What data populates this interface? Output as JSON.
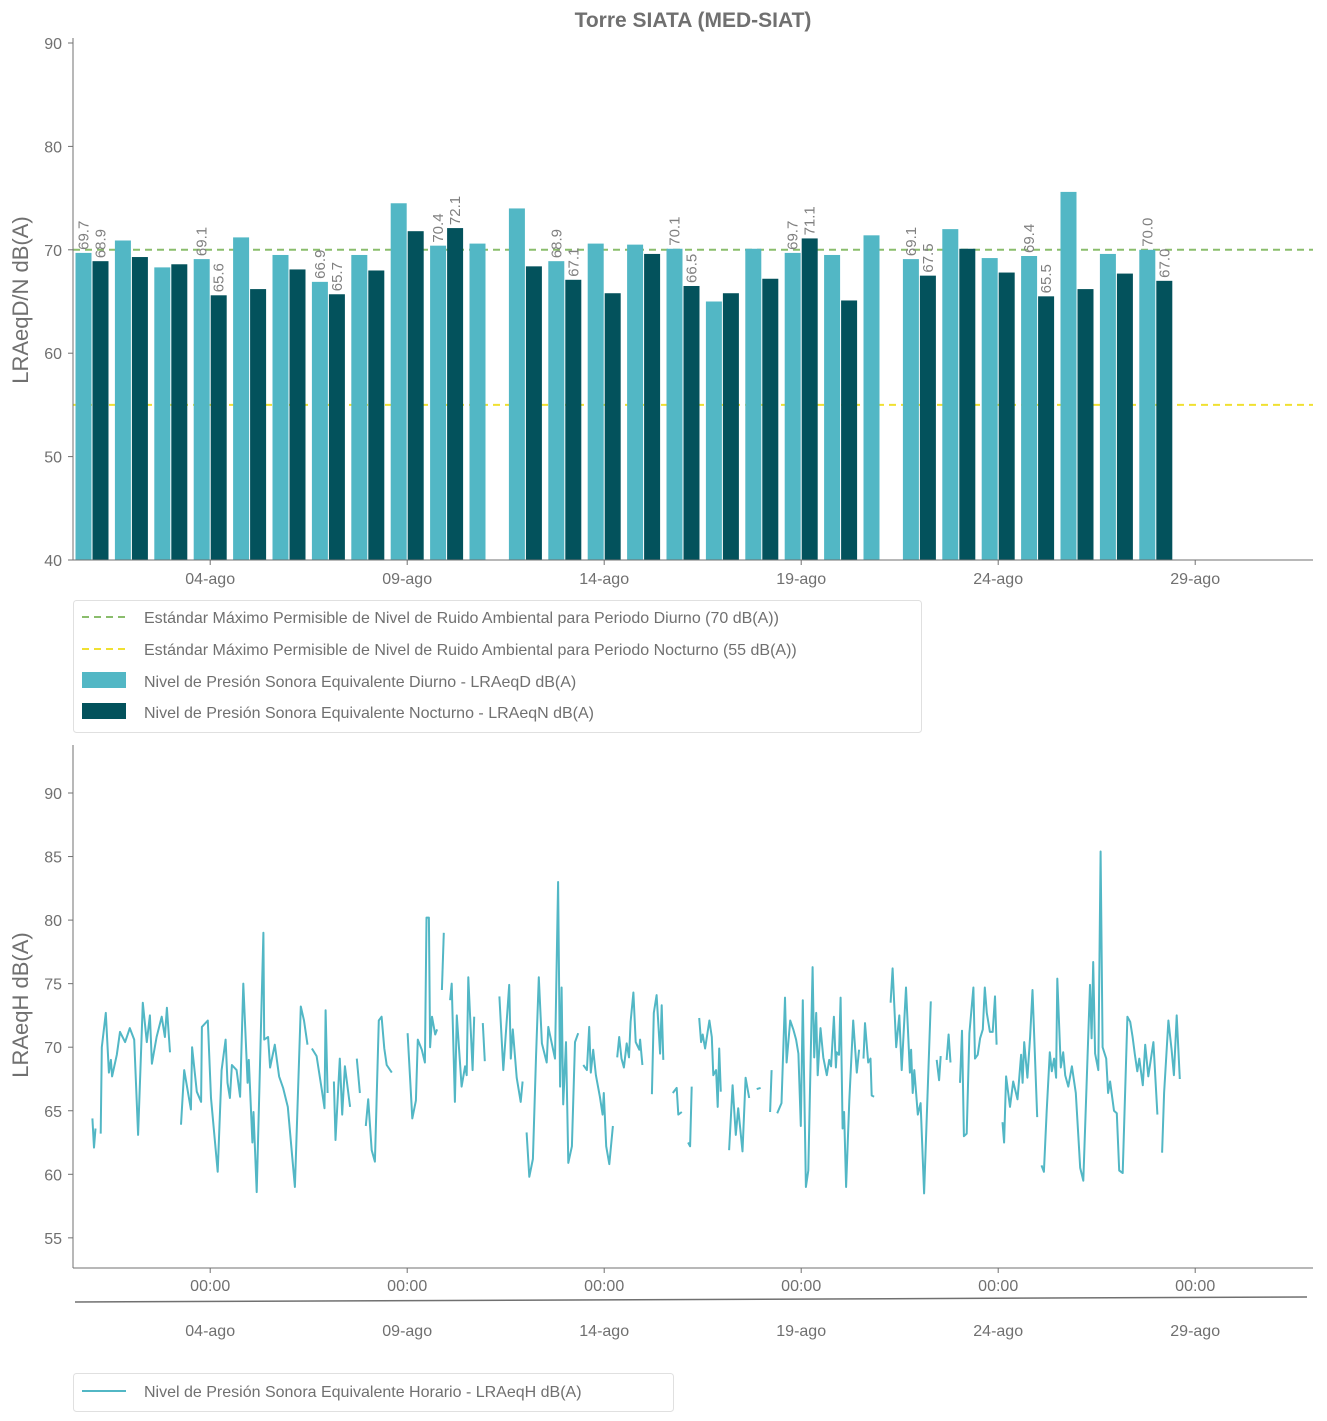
{
  "chart_data": [
    {
      "type": "bar",
      "title": "Torre SIATA (MED-SIAT)",
      "xlabel": "",
      "ylabel": "LRAeqD/N dB(A)",
      "ylim": [
        40,
        90.5
      ],
      "yticks": [
        40,
        50,
        60,
        70,
        80,
        90
      ],
      "xtick_labels": [
        {
          "day": 4,
          "label": "04-ago"
        },
        {
          "day": 9,
          "label": "09-ago"
        },
        {
          "day": 14,
          "label": "14-ago"
        },
        {
          "day": 19,
          "label": "19-ago"
        },
        {
          "day": 24,
          "label": "24-ago"
        },
        {
          "day": 29,
          "label": "29-ago"
        }
      ],
      "days": [
        1,
        2,
        3,
        4,
        5,
        6,
        7,
        8,
        9,
        10,
        11,
        12,
        13,
        14,
        15,
        16,
        17,
        18,
        19,
        20,
        21,
        22,
        23,
        24,
        25,
        26,
        27,
        28
      ],
      "series": [
        {
          "name": "Nivel de Presión Sonora Equivalente Diurno - LRAeqD dB(A)",
          "color": "#52b7c5",
          "values": [
            69.7,
            70.9,
            68.3,
            69.1,
            71.2,
            69.5,
            66.9,
            69.5,
            74.5,
            70.4,
            70.6,
            74.0,
            68.9,
            70.6,
            70.5,
            70.1,
            65.0,
            70.1,
            69.7,
            69.5,
            71.4,
            69.1,
            72.0,
            69.2,
            69.4,
            75.6,
            69.6,
            70.0
          ]
        },
        {
          "name": "Nivel de Presión Sonora Equivalente Nocturno - LRAeqN dB(A)",
          "color": "#03525c",
          "values": [
            68.9,
            69.3,
            68.6,
            65.6,
            66.2,
            68.1,
            65.7,
            68.0,
            71.8,
            72.1,
            null,
            68.4,
            67.1,
            65.8,
            69.6,
            66.5,
            65.8,
            67.2,
            71.1,
            65.1,
            null,
            67.5,
            70.1,
            67.8,
            65.5,
            66.2,
            67.7,
            67.0
          ]
        }
      ],
      "labeled_days": [
        1,
        4,
        7,
        10,
        13,
        16,
        19,
        22,
        25,
        28
      ],
      "reference_lines": [
        {
          "name": "Estándar Máximo Permisible de Nivel de Ruido Ambiental para Periodo Diurno (70 dB(A))",
          "value": 70,
          "color": "#8abd6c",
          "style": "dashed"
        },
        {
          "name": "Estándar Máximo Permisible de Nivel de Ruido Ambiental para Periodo Nocturno (55 dB(A))",
          "value": 55,
          "color": "#f0e032",
          "style": "dashed"
        }
      ],
      "legend_position": "below"
    },
    {
      "type": "line",
      "title": "",
      "xlabel": "",
      "ylabel": "LRAeqH dB(A)",
      "ylim": [
        52.6,
        93.8
      ],
      "yticks": [
        55,
        60,
        65,
        70,
        75,
        80,
        85,
        90
      ],
      "x_units": "days since 01-ago 00:00",
      "xtick_labels": [
        {
          "day": 3,
          "time": "00:00",
          "date": "04-ago"
        },
        {
          "day": 8,
          "time": "00:00",
          "date": "09-ago"
        },
        {
          "day": 13,
          "time": "00:00",
          "date": "14-ago"
        },
        {
          "day": 18,
          "time": "00:00",
          "date": "19-ago"
        },
        {
          "day": 23,
          "time": "00:00",
          "date": "24-ago"
        },
        {
          "day": 28,
          "time": "00:00",
          "date": "29-ago"
        }
      ],
      "series": [
        {
          "name": "Nivel de Presión Sonora Equivalente Horario - LRAeqH dB(A)",
          "color": "#52b7c5",
          "x": [
            0.01,
            0.05,
            0.09,
            null,
            0.22,
            0.25,
            0.35,
            0.43,
            0.48,
            0.51,
            0.63,
            0.71,
            0.84,
            0.96,
            1.07,
            1.17,
            1.29,
            1.39,
            1.47,
            1.52,
            1.64,
            1.77,
            1.85,
            1.9,
            1.98,
            null,
            2.26,
            2.34,
            2.51,
            2.54,
            2.66,
            2.77,
            2.79,
            2.94,
            3.02,
            3.19,
            3.29,
            3.39,
            3.44,
            3.5,
            3.55,
            3.67,
            3.76,
            3.84,
            3.95,
            3.98,
            4.07,
            4.1,
            4.18,
            4.26,
            4.35,
            4.37,
            4.47,
            4.52,
            4.64,
            4.75,
            4.85,
            4.97,
            5.15,
            5.3,
            5.38,
            5.47,
            null,
            5.58,
            5.7,
            5.83,
            5.9,
            5.93,
            5.98,
            null,
            6.14,
            6.18,
            6.29,
            6.35,
            6.42,
            6.55,
            null,
            6.72,
            6.8,
            null,
            6.95,
            7.01,
            7.1,
            7.18,
            7.28,
            7.35,
            7.42,
            7.48,
            7.61,
            null,
            8.01,
            8.13,
            8.22,
            8.27,
            8.37,
            8.45,
            8.49,
            8.55,
            8.58,
            8.63,
            8.71,
            8.76,
            null,
            8.88,
            8.93,
            null,
            9.09,
            9.13,
            9.21,
            9.26,
            9.38,
            9.47,
            9.51,
            9.55,
            9.66,
            9.7,
            null,
            9.92,
            9.97,
            null,
            10.34,
            10.44,
            10.59,
            10.63,
            10.68,
            10.78,
            10.88,
            10.93,
            null,
            11.03,
            11.1,
            11.19,
            11.27,
            11.34,
            11.42,
            11.54,
            11.58,
            11.75,
            11.83,
            11.88,
            11.92,
            11.96,
            12.03,
            12.09,
            12.18,
            12.26,
            12.34,
            null,
            12.47,
            12.56,
            12.62,
            12.66,
            12.72,
            12.79,
            12.89,
            12.96,
            12.99,
            13.05,
            13.13,
            13.22,
            null,
            13.33,
            13.38,
            13.44,
            13.5,
            13.57,
            13.63,
            13.67,
            13.74,
            13.8,
            13.89,
            13.91,
            13.97,
            null,
            14.21,
            14.26,
            14.33,
            14.42,
            14.46,
            14.5,
            null,
            14.74,
            14.84,
            14.88,
            14.97,
            null,
            15.13,
            15.18,
            15.22,
            null,
            15.41,
            15.46,
            15.5,
            15.56,
            15.67,
            15.73,
            15.77,
            15.84,
            15.88,
            15.92,
            15.96,
            null,
            16.17,
            16.26,
            16.34,
            16.4,
            16.51,
            16.59,
            16.68,
            null,
            16.87,
            16.97,
            null,
            17.21,
            17.25,
            null,
            17.39,
            17.5,
            17.59,
            17.63,
            17.72,
            17.8,
            17.87,
            17.93,
            17.99,
            18.04,
            18.12,
            18.18,
            18.29,
            18.33,
            18.38,
            18.42,
            18.49,
            18.56,
            18.65,
            18.71,
            18.76,
            18.83,
            18.88,
            18.9,
            18.96,
            19.0,
            19.05,
            19.09,
            19.14,
            19.22,
            19.32,
            19.41,
            19.47,
            null,
            19.58,
            19.62,
            19.7,
            19.76,
            19.79,
            19.85,
            null,
            20.27,
            20.32,
            20.41,
            20.49,
            20.55,
            20.66,
            20.76,
            20.79,
            20.83,
            20.87,
            20.96,
            21.03,
            21.12,
            21.29,
            null,
            21.44,
            21.5,
            21.54,
            null,
            21.69,
            21.74,
            21.79,
            null,
            22.03,
            22.08,
            22.13,
            22.2,
            22.27,
            22.37,
            22.41,
            22.48,
            22.54,
            22.61,
            22.66,
            22.71,
            22.79,
            22.86,
            22.92,
            22.96,
            null,
            23.11,
            23.15,
            23.2,
            23.3,
            23.38,
            23.49,
            23.58,
            23.62,
            23.66,
            23.74,
            23.81,
            23.87,
            23.99,
            null,
            24.1,
            24.16,
            24.23,
            24.31,
            24.36,
            24.42,
            24.47,
            24.5,
            24.59,
            24.65,
            24.7,
            24.78,
            24.87,
            24.97,
            25.08,
            25.16,
            25.33,
            25.37,
            25.41,
            25.46,
            25.54,
            25.6,
            25.65,
            25.74,
            25.79,
            25.84,
            25.94,
            26.01,
            26.07,
            26.16,
            26.28,
            26.35,
            26.41,
            26.47,
            26.53,
            26.58,
            26.67,
            26.73,
            26.81,
            26.94,
            27.04,
            null,
            27.16,
            27.21,
            27.32,
            27.4,
            27.46,
            27.53,
            27.61
          ],
          "y": [
            64.4,
            62.1,
            63.6,
            null,
            63.2,
            70.0,
            72.7,
            68.0,
            69.0,
            67.7,
            69.4,
            71.2,
            70.4,
            71.5,
            70.6,
            63.1,
            73.5,
            70.4,
            72.5,
            68.7,
            70.8,
            72.4,
            70.8,
            73.1,
            69.6,
            null,
            63.9,
            68.2,
            65.1,
            70.0,
            66.5,
            65.7,
            71.6,
            72.1,
            66.0,
            60.2,
            68.2,
            70.6,
            67.2,
            66.0,
            68.6,
            68.2,
            66.1,
            75.0,
            67.2,
            69.0,
            62.5,
            64.9,
            58.6,
            68.0,
            79.0,
            70.6,
            70.8,
            68.4,
            70.2,
            67.7,
            66.8,
            65.3,
            59.0,
            73.2,
            72.1,
            70.2,
            null,
            69.9,
            69.3,
            66.7,
            65.2,
            72.9,
            66.4,
            null,
            67.3,
            62.7,
            69.1,
            64.7,
            68.5,
            65.3,
            null,
            69.1,
            66.4,
            null,
            63.8,
            65.9,
            61.9,
            61.0,
            72.1,
            72.4,
            69.9,
            68.6,
            68.0,
            null,
            71.1,
            64.4,
            65.8,
            70.6,
            69.8,
            68.8,
            80.2,
            80.2,
            70.0,
            72.4,
            71.0,
            71.4,
            null,
            74.5,
            79.0,
            null,
            73.7,
            75.0,
            65.7,
            72.5,
            66.9,
            68.5,
            67.8,
            75.5,
            68.2,
            72.4,
            null,
            71.9,
            68.9,
            null,
            74.0,
            68.2,
            74.9,
            69.1,
            71.4,
            67.6,
            65.7,
            67.3,
            null,
            63.3,
            59.8,
            61.2,
            69.2,
            75.5,
            70.3,
            68.8,
            71.6,
            69.1,
            83.0,
            66.9,
            74.7,
            65.5,
            70.4,
            60.9,
            62.2,
            70.4,
            71.1,
            null,
            68.6,
            68.2,
            71.6,
            68.0,
            69.8,
            67.8,
            66.1,
            64.7,
            66.4,
            62.2,
            60.8,
            63.8,
            null,
            69.2,
            70.8,
            69.1,
            68.4,
            70.3,
            69.2,
            72.0,
            74.3,
            70.4,
            69.8,
            70.6,
            68.6,
            null,
            66.3,
            72.7,
            74.1,
            69.5,
            73.3,
            69.0,
            null,
            66.4,
            66.8,
            64.7,
            64.9,
            null,
            62.5,
            62.2,
            66.9,
            null,
            72.3,
            70.4,
            71.0,
            69.9,
            72.1,
            70.8,
            67.8,
            68.2,
            65.3,
            69.9,
            66.5,
            null,
            61.9,
            67.0,
            63.1,
            65.2,
            61.8,
            67.6,
            66.0,
            null,
            66.7,
            66.8,
            null,
            64.9,
            68.2,
            null,
            64.8,
            65.6,
            73.9,
            68.8,
            72.1,
            71.4,
            70.6,
            69.5,
            63.8,
            73.7,
            59.0,
            60.3,
            76.3,
            69.2,
            72.7,
            67.8,
            71.5,
            69.2,
            67.8,
            69.0,
            68.5,
            72.4,
            68.4,
            69.6,
            69.4,
            73.9,
            63.6,
            64.9,
            59.0,
            65.8,
            72.1,
            68.0,
            69.8,
            null,
            69.1,
            71.9,
            68.8,
            69.1,
            66.2,
            66.1,
            null,
            73.5,
            76.2,
            70.0,
            72.5,
            68.2,
            74.7,
            68.0,
            69.8,
            66.4,
            68.2,
            64.7,
            65.6,
            58.5,
            73.6,
            null,
            69.0,
            67.4,
            69.3,
            null,
            69.0,
            71.0,
            68.8,
            null,
            67.2,
            71.3,
            63.0,
            63.2,
            71.1,
            74.7,
            69.1,
            69.4,
            70.7,
            71.4,
            74.7,
            72.7,
            71.2,
            71.2,
            74.0,
            70.2,
            null,
            64.1,
            62.5,
            67.7,
            65.3,
            67.3,
            65.9,
            69.4,
            67.2,
            70.4,
            67.6,
            70.8,
            74.5,
            64.5,
            null,
            60.7,
            60.2,
            65.0,
            69.6,
            68.1,
            69.1,
            67.6,
            75.4,
            68.4,
            69.6,
            67.8,
            66.9,
            68.5,
            66.4,
            60.5,
            59.5,
            74.9,
            70.7,
            76.7,
            69.5,
            68.2,
            85.4,
            70.0,
            69.1,
            66.4,
            67.3,
            65.0,
            64.8,
            60.3,
            60.1,
            72.4,
            72.0,
            70.8,
            69.4,
            68.1,
            69.1,
            67.0,
            70.2,
            67.7,
            70.4,
            64.7,
            null,
            61.7,
            66.4,
            72.1,
            69.8,
            67.8,
            72.5,
            67.5
          ]
        }
      ],
      "legend_position": "below"
    }
  ]
}
